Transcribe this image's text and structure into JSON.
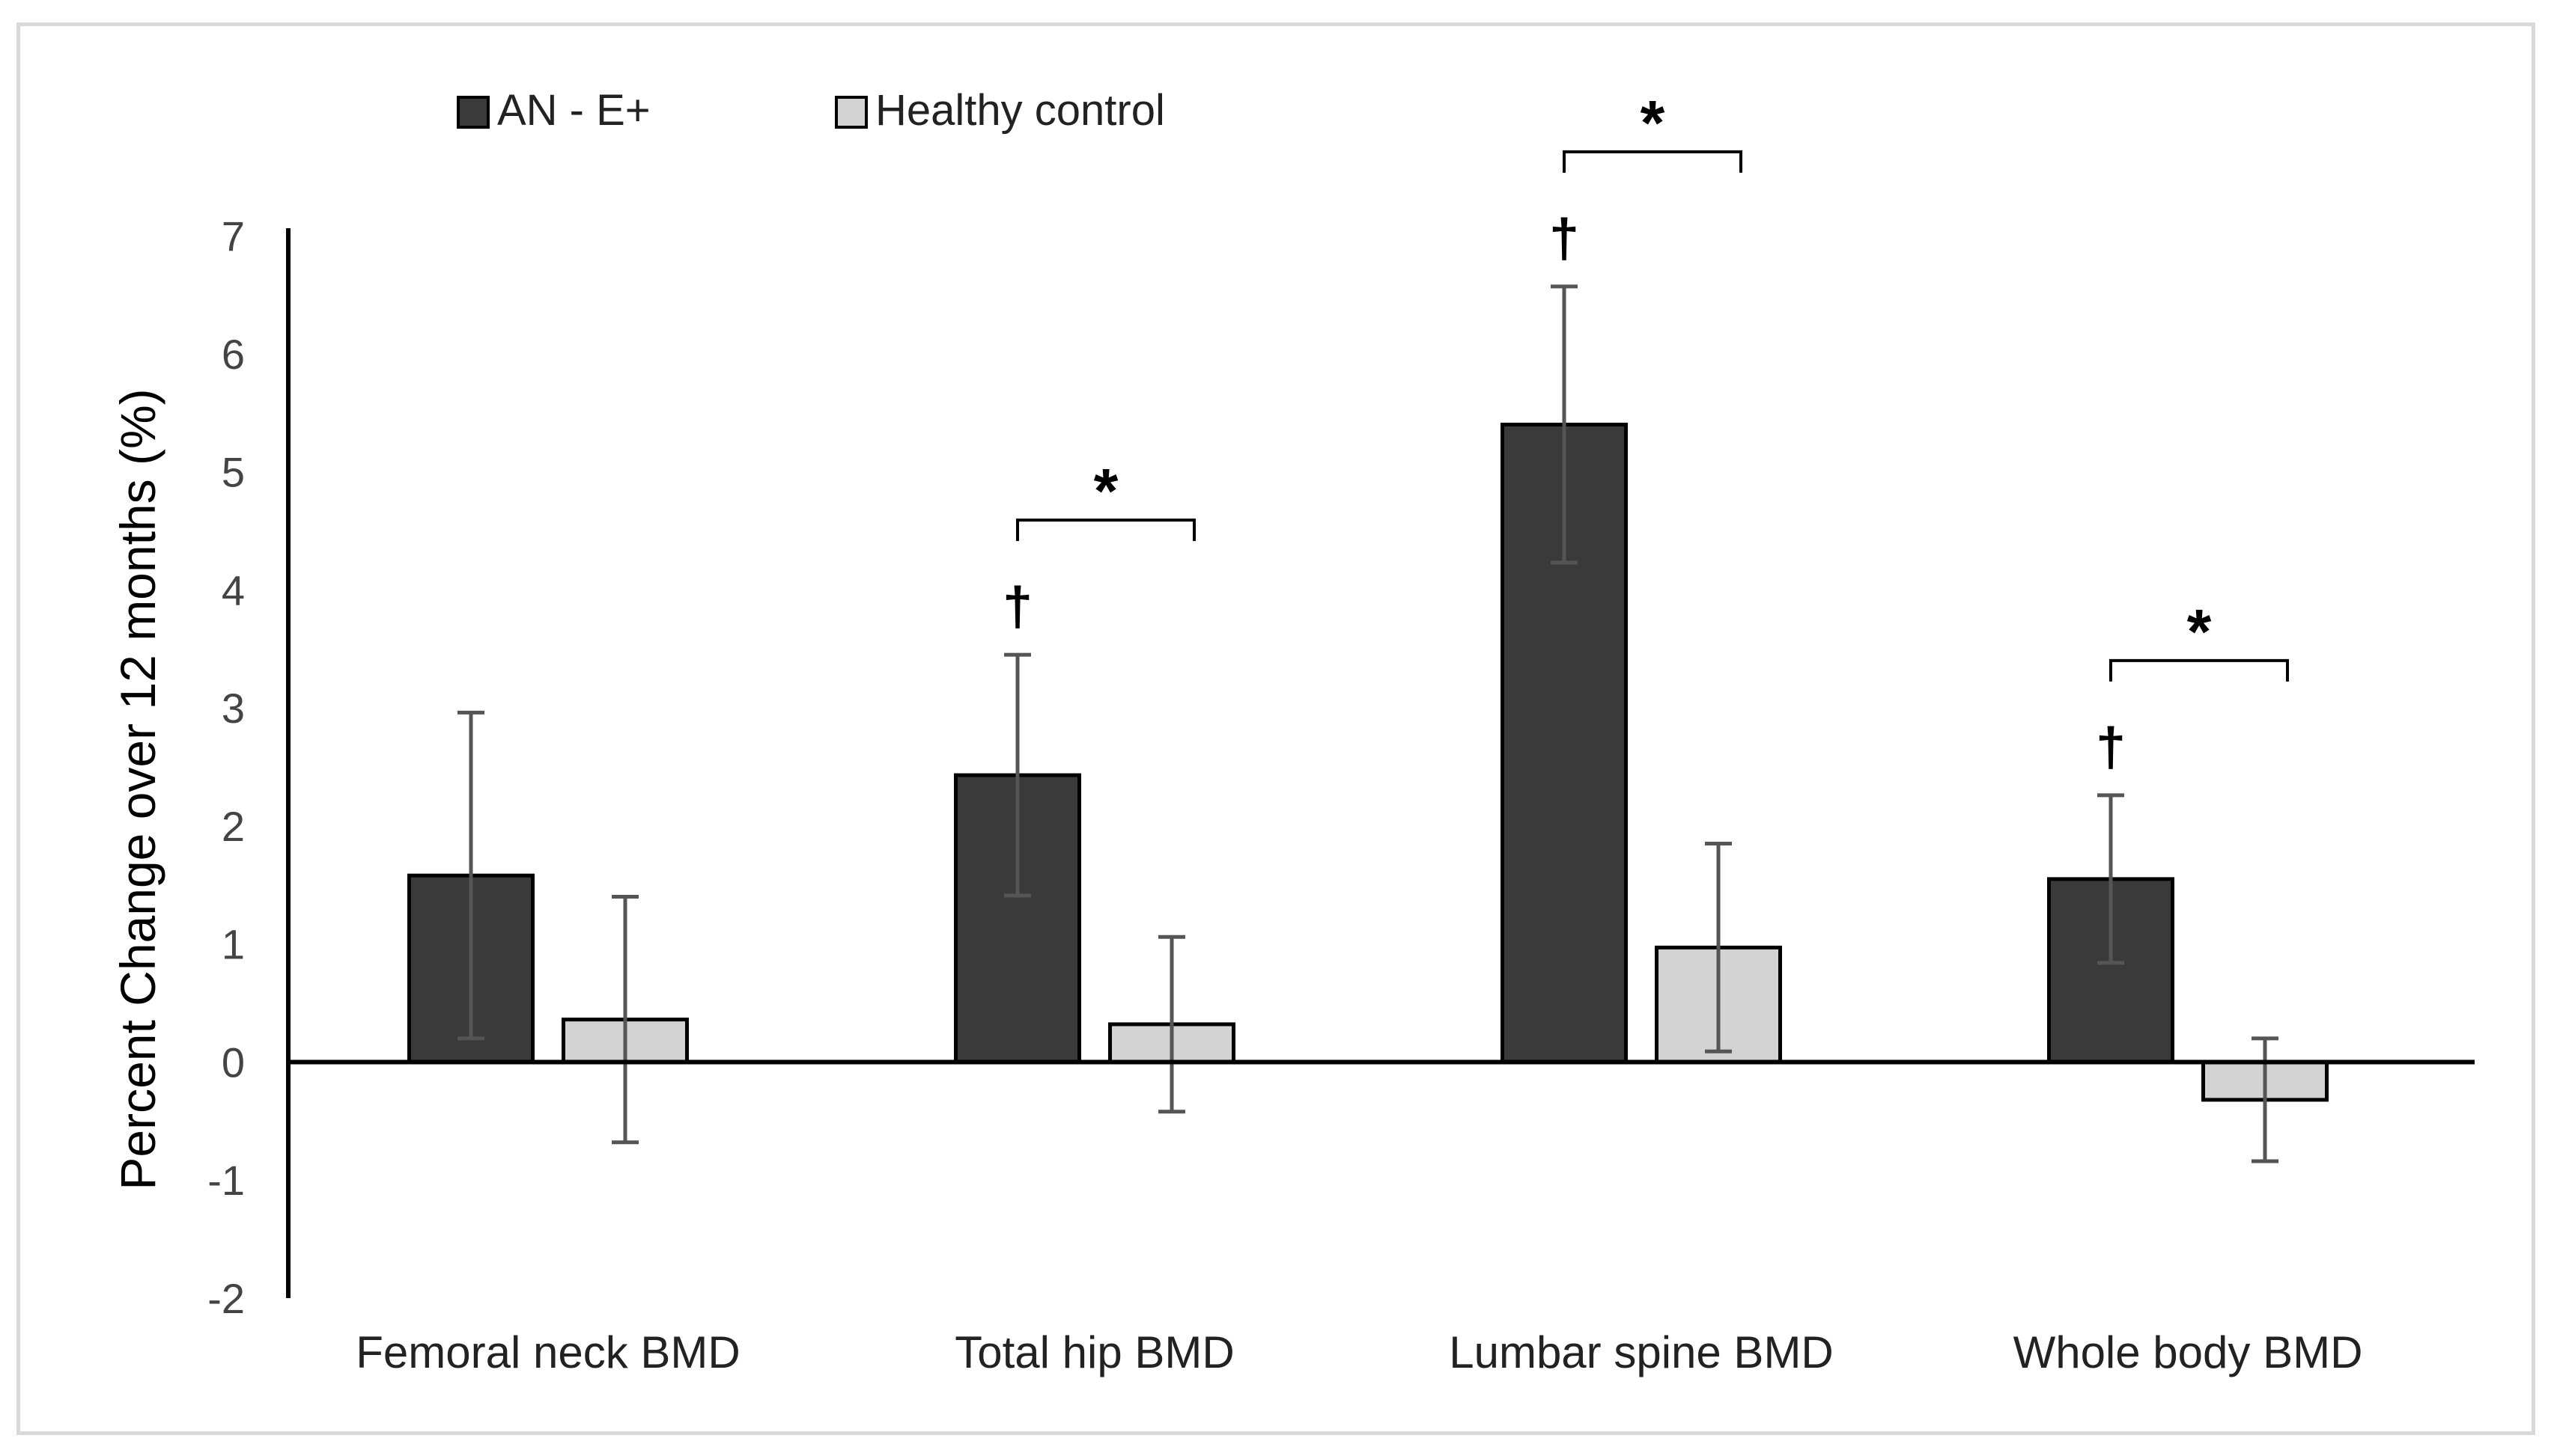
{
  "chart_data": {
    "type": "bar",
    "title": "",
    "xlabel": "",
    "ylabel": "Percent Change over 12 months (%)",
    "ylim": [
      -2,
      7
    ],
    "yticks": [
      "-2",
      "-1",
      "0",
      "1",
      "2",
      "3",
      "4",
      "5",
      "6",
      "7"
    ],
    "categories": [
      "Femoral neck BMD",
      "Total hip BMD",
      "Lumbar spine BMD",
      "Whole body BMD"
    ],
    "series": [
      {
        "name": "AN - E+",
        "color": "#3a3a3a",
        "values": [
          1.58,
          2.43,
          5.4,
          1.55
        ],
        "error": [
          1.38,
          1.02,
          1.17,
          0.71
        ]
      },
      {
        "name": "Healthy control",
        "color": "#d3d3d3",
        "values": [
          0.36,
          0.32,
          0.97,
          -0.32
        ],
        "error": [
          1.04,
          0.74,
          0.88,
          0.52
        ]
      }
    ],
    "annotations": {
      "dagger_symbol": "†",
      "significance_symbol": "*",
      "dagger_categories": [
        1,
        2,
        3
      ],
      "significance_categories": [
        1,
        2,
        3
      ]
    },
    "legend_position": "top-left",
    "grid": false
  }
}
